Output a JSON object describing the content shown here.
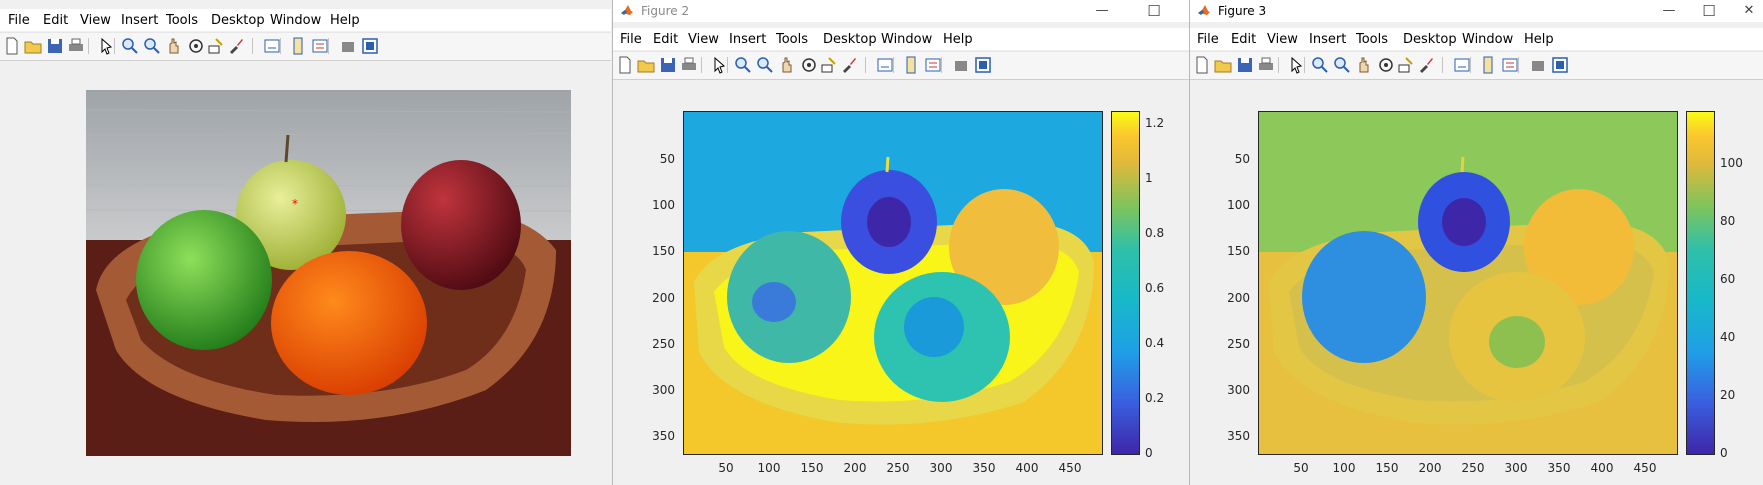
{
  "colors": {
    "parula_dark": "#3e26a8",
    "parula_blue": "#1ea0e6",
    "parula_teal": "#30c0a8",
    "parula_green": "#a8c840",
    "parula_yellow": "#f9fb15",
    "marker": "#ff0000"
  },
  "menu": [
    "File",
    "Edit",
    "View",
    "Insert",
    "Tools",
    "Desktop",
    "Window",
    "Help"
  ],
  "toolbar_icons": [
    "new-file-icon",
    "open-folder-icon",
    "save-icon",
    "print-icon",
    "pointer-icon",
    "zoom-in-icon",
    "zoom-out-icon",
    "pan-hand-icon",
    "rotate-3d-icon",
    "data-cursor-icon",
    "brush-icon",
    "link-plot-icon",
    "colorbar-icon",
    "legend-icon",
    "hide-tools-icon",
    "show-tools-icon"
  ],
  "figure1": {
    "image_description": "photograph of fruit in wooden bowl"
  },
  "figure2": {
    "title": "Figure 2",
    "y_ticks": [
      "50",
      "100",
      "150",
      "200",
      "250",
      "300",
      "350"
    ],
    "x_ticks": [
      "50",
      "100",
      "150",
      "200",
      "250",
      "300",
      "350",
      "400",
      "450"
    ],
    "colorbar_ticks": [
      "1.2",
      "1",
      "0.8",
      "0.6",
      "0.4",
      "0.2",
      "0"
    ]
  },
  "figure3": {
    "title": "Figure 3",
    "y_ticks": [
      "50",
      "100",
      "150",
      "200",
      "250",
      "300",
      "350"
    ],
    "x_ticks": [
      "50",
      "100",
      "150",
      "200",
      "250",
      "300",
      "350",
      "400",
      "450"
    ],
    "colorbar_ticks": [
      "100",
      "80",
      "60",
      "40",
      "20",
      "0"
    ]
  },
  "window_buttons": {
    "minimize": "—",
    "maximize": "☐",
    "close": "✕"
  }
}
